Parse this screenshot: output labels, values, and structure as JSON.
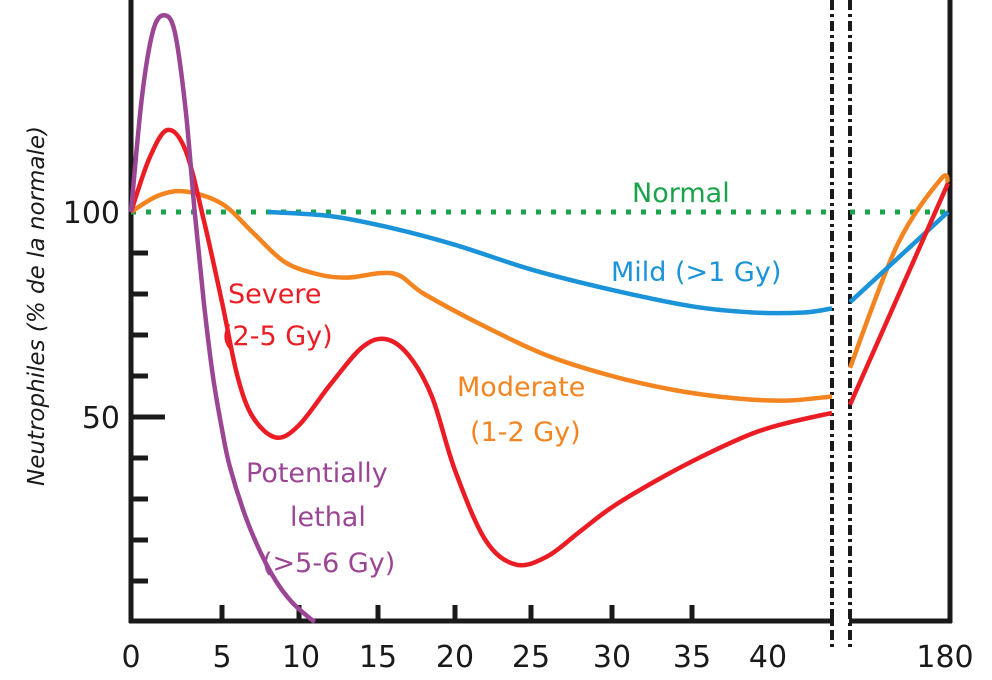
{
  "chart_data": {
    "type": "line",
    "title": "",
    "xlabel": "",
    "ylabel": "Neutrophiles (% de la normale)",
    "x_tick_labels": [
      "0",
      "5",
      "10",
      "15",
      "20",
      "25",
      "30",
      "35",
      "40",
      "180"
    ],
    "x_ticks": [
      0,
      5,
      10,
      15,
      20,
      25,
      30,
      35,
      40,
      180
    ],
    "y_tick_labels": [
      "50",
      "100"
    ],
    "y_ticks_labeled": [
      50,
      100
    ],
    "y_minor_ticks": [
      10,
      20,
      30,
      40,
      60,
      70,
      80,
      90
    ],
    "xlim_segment1": [
      0,
      43.5
    ],
    "xlim_segment2": [
      44.5,
      180
    ],
    "axis_break": true,
    "ylim": [
      0,
      148
    ],
    "grid": false,
    "legend": "none (inline labels)",
    "series": [
      {
        "name": "Normal",
        "label": "Normal",
        "color": "#1aa34a",
        "style": "dotted",
        "points": [
          [
            0,
            100
          ],
          [
            43.5,
            100
          ],
          [
            44.5,
            100
          ],
          [
            180,
            100
          ]
        ]
      },
      {
        "name": "Mild (>1 Gy)",
        "label": "Mild (>1 Gy)",
        "color": "#1a93d9",
        "style": "solid",
        "points": [
          [
            8,
            100
          ],
          [
            12,
            99
          ],
          [
            16,
            96
          ],
          [
            20,
            92
          ],
          [
            25,
            86
          ],
          [
            30,
            81
          ],
          [
            35,
            77
          ],
          [
            39,
            75.5
          ],
          [
            42,
            75.5
          ],
          [
            43.5,
            76.5
          ]
        ],
        "points_after_break": [
          [
            44.5,
            78
          ],
          [
            180,
            100
          ]
        ]
      },
      {
        "name": "Moderate (1-2 Gy)",
        "label_line1": "Moderate",
        "label_line2": "(1-2 Gy)",
        "color": "#f48420",
        "style": "solid",
        "points": [
          [
            0,
            100
          ],
          [
            1.5,
            104
          ],
          [
            3,
            105
          ],
          [
            5,
            102
          ],
          [
            7,
            95
          ],
          [
            9,
            88
          ],
          [
            11,
            85
          ],
          [
            13,
            84
          ],
          [
            16,
            85
          ],
          [
            18,
            80
          ],
          [
            22,
            72
          ],
          [
            26,
            65
          ],
          [
            30,
            60
          ],
          [
            34,
            56.5
          ],
          [
            38,
            54.5
          ],
          [
            41,
            54
          ],
          [
            43.5,
            55
          ]
        ],
        "points_after_break": [
          [
            44.5,
            62
          ],
          [
            110,
            92
          ],
          [
            170,
            108
          ],
          [
            180,
            107
          ]
        ]
      },
      {
        "name": "Severe (2-5 Gy)",
        "label_line1": "Severe",
        "label_line2": "(2-5 Gy)",
        "color": "#ec1c24",
        "style": "solid",
        "points": [
          [
            0,
            100
          ],
          [
            1,
            113
          ],
          [
            2,
            120
          ],
          [
            3,
            115
          ],
          [
            4,
            98
          ],
          [
            5,
            78
          ],
          [
            6,
            60
          ],
          [
            7,
            50
          ],
          [
            8.5,
            45
          ],
          [
            10,
            48
          ],
          [
            12,
            58
          ],
          [
            14,
            67
          ],
          [
            15.5,
            69
          ],
          [
            17,
            65
          ],
          [
            18.5,
            55
          ],
          [
            20,
            37
          ],
          [
            22,
            20
          ],
          [
            24,
            14
          ],
          [
            26,
            16
          ],
          [
            28,
            22
          ],
          [
            30,
            28
          ],
          [
            33,
            35
          ],
          [
            36,
            41
          ],
          [
            39,
            46
          ],
          [
            41,
            48.5
          ],
          [
            43.5,
            51
          ]
        ],
        "points_after_break": [
          [
            44.5,
            53
          ],
          [
            180,
            107
          ]
        ]
      },
      {
        "name": "Potentially lethal (>5-6 Gy)",
        "label_line1": "Potentially",
        "label_line2": "lethal",
        "label_line3": "(>5-6 Gy)",
        "color": "#9b4695",
        "style": "solid",
        "points": [
          [
            0,
            100
          ],
          [
            0.6,
            128
          ],
          [
            1.2,
            144
          ],
          [
            1.8,
            148
          ],
          [
            2.4,
            144
          ],
          [
            3,
            125
          ],
          [
            3.5,
            100
          ],
          [
            4,
            78
          ],
          [
            4.5,
            60
          ],
          [
            5,
            47
          ],
          [
            5.5,
            38
          ],
          [
            6.5,
            26
          ],
          [
            7.5,
            17
          ],
          [
            8.5,
            10
          ],
          [
            9.5,
            5
          ],
          [
            10.5,
            1.5
          ],
          [
            11,
            0
          ]
        ]
      }
    ]
  }
}
